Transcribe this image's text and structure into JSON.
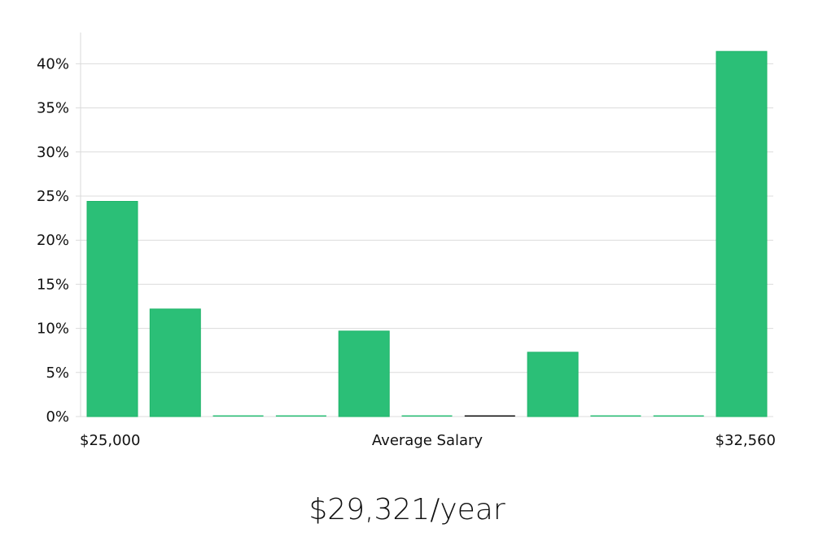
{
  "chart_data": {
    "type": "bar",
    "bins": 11,
    "values": [
      24.4,
      12.2,
      0,
      0,
      9.7,
      0,
      0,
      7.3,
      0,
      0,
      41.4
    ],
    "y_ticks": [
      "0%",
      "5%",
      "10%",
      "15%",
      "20%",
      "25%",
      "30%",
      "35%",
      "40%"
    ],
    "ylim": [
      0,
      43
    ],
    "x_min_label": "$25,000",
    "x_max_label": "$32,560",
    "xlabel": "Average Salary",
    "bar_color": "#2bbf77",
    "bar_stroke": "#1fb46a",
    "highlight_bin": 6,
    "highlight_color": "#111111",
    "grid": true
  },
  "summary": {
    "salary_text": "$29,321/year"
  }
}
